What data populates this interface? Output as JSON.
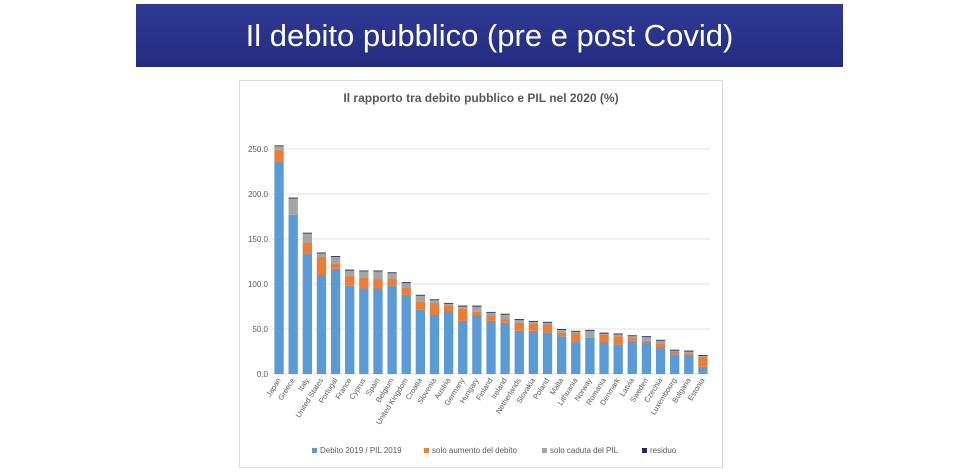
{
  "slide": {
    "title": "Il debito pubblico (pre e post Covid)"
  },
  "colors": {
    "banner": "#2a3389",
    "debt": "#5b9bd5",
    "increase": "#ed7d31",
    "gdp_fall": "#a5a5a5",
    "residual": "#1f2d5c"
  },
  "chart_data": {
    "type": "bar",
    "stacked": true,
    "title": "Il rapporto tra debito pubblico e PIL nel 2020 (%)",
    "xlabel": "",
    "ylabel": "",
    "ylim": [
      0,
      250
    ],
    "yticks": [
      "0.0",
      "50.0",
      "100.0",
      "150.0",
      "200.0",
      "250.0"
    ],
    "grid": true,
    "legend_position": "bottom",
    "categories": [
      "Japan",
      "Greece",
      "Italy",
      "United States",
      "Portugal",
      "France",
      "Cyprus",
      "Spain",
      "Belgium",
      "United Kingdom",
      "Croatia",
      "Slovenia",
      "Austria",
      "Germany",
      "Hungary",
      "Finland",
      "Ireland",
      "Netherlands",
      "Slovakia",
      "Poland",
      "Malta",
      "Lithuania",
      "Norway",
      "Romania",
      "Denmark",
      "Latvia",
      "Sweden",
      "Czechia",
      "Luxembourg",
      "Bulgaria",
      "Estonia"
    ],
    "series": [
      {
        "name": "Debito 2019 / PIL 2019",
        "color": "#5b9bd5",
        "values": [
          236,
          177,
          134,
          110,
          117,
          98,
          95,
          95,
          98,
          88,
          72,
          66,
          70,
          59,
          65,
          59,
          57,
          48,
          48,
          46,
          42,
          36,
          40,
          35,
          33,
          37,
          35,
          30,
          22,
          20,
          8
        ]
      },
      {
        "name": "solo aumento del debito",
        "color": "#ed7d31",
        "values": [
          13,
          0,
          12,
          20,
          6,
          11,
          12,
          10,
          8,
          8,
          8,
          13,
          6,
          14,
          4,
          6,
          4,
          9,
          8,
          9,
          4,
          9,
          0,
          9,
          9,
          3,
          2,
          4,
          3,
          3,
          11
        ]
      },
      {
        "name": "solo caduta del PIL",
        "color": "#a5a5a5",
        "values": [
          4,
          18,
          10,
          4,
          7,
          6,
          7,
          9,
          6,
          5,
          7,
          3,
          2,
          2,
          6,
          3,
          5,
          3,
          2,
          2,
          3,
          2,
          8,
          1,
          2,
          2,
          4,
          3,
          1,
          2,
          1
        ]
      },
      {
        "name": "residuo",
        "color": "#1f2d5c",
        "values": [
          1,
          1,
          1,
          1,
          1,
          1,
          1,
          1,
          1,
          1,
          1,
          1,
          1,
          1,
          1,
          1,
          1,
          1,
          1,
          1,
          1,
          1,
          1,
          1,
          1,
          1,
          1,
          1,
          1,
          1,
          1
        ]
      }
    ]
  }
}
